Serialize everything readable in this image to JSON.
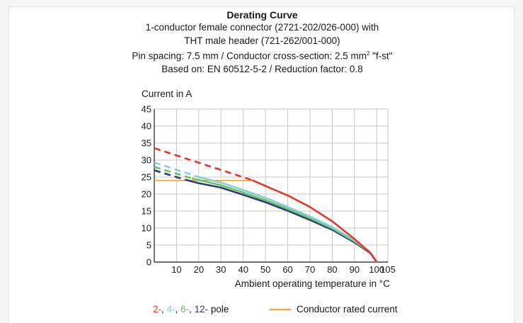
{
  "titles": {
    "main": "Derating Curve",
    "line1": "1-conductor female connector (2721-202/026-000) with",
    "line2": "THT male header (721-262/001-000)",
    "line3_prefix": "Pin spacing: 7.5 mm / Conductor cross-section: 2.5 mm",
    "line3_sup": "2",
    "line3_suffix": " \"f-st\"",
    "line4": "Based on: EN 60512-5-2 / Reduction factor: 0.8"
  },
  "chart_data": {
    "type": "line",
    "title": "Derating Curve",
    "ylabel": "Current in A",
    "xlabel": "Ambient operating temperature in °C",
    "xlim": [
      0,
      105
    ],
    "ylim": [
      0,
      45
    ],
    "xticks": [
      10,
      20,
      30,
      40,
      50,
      60,
      70,
      80,
      90,
      100,
      105
    ],
    "yticks": [
      0,
      5,
      10,
      15,
      20,
      25,
      30,
      35,
      40,
      45
    ],
    "grid": true,
    "series": [
      {
        "name": "2-",
        "color": "#e8372c",
        "dashed": [
          [
            0,
            33.5
          ],
          [
            44,
            24.1
          ]
        ],
        "values": [
          [
            44,
            24.1
          ],
          [
            50,
            22.4
          ],
          [
            60,
            19.6
          ],
          [
            70,
            16.2
          ],
          [
            80,
            12.0
          ],
          [
            90,
            6.8
          ],
          [
            97,
            2.8
          ],
          [
            100,
            0
          ]
        ]
      },
      {
        "name": "4-",
        "color": "#7fd1d6",
        "dashed": [
          [
            0,
            29.3
          ],
          [
            20,
            25.0
          ]
        ],
        "values": [
          [
            20,
            25.0
          ],
          [
            30,
            23.4
          ],
          [
            40,
            21.2
          ],
          [
            50,
            18.9
          ],
          [
            60,
            16.2
          ],
          [
            70,
            13.4
          ],
          [
            80,
            10.3
          ],
          [
            90,
            6.4
          ],
          [
            97,
            3.0
          ],
          [
            100,
            0
          ]
        ]
      },
      {
        "name": "6-",
        "color": "#6cc069",
        "dashed": [
          [
            0,
            28.0
          ],
          [
            17,
            24.6
          ]
        ],
        "values": [
          [
            17,
            24.6
          ],
          [
            30,
            22.6
          ],
          [
            40,
            20.5
          ],
          [
            50,
            18.2
          ],
          [
            60,
            15.6
          ],
          [
            70,
            12.9
          ],
          [
            80,
            9.9
          ],
          [
            90,
            6.1
          ],
          [
            97,
            2.9
          ],
          [
            100,
            0
          ]
        ]
      },
      {
        "name": "12-",
        "color": "#2f3878",
        "dashed": [
          [
            0,
            27.0
          ],
          [
            14,
            24.2
          ]
        ],
        "values": [
          [
            14,
            24.2
          ],
          [
            20,
            23.2
          ],
          [
            30,
            21.9
          ],
          [
            40,
            19.8
          ],
          [
            50,
            17.6
          ],
          [
            60,
            15.1
          ],
          [
            70,
            12.4
          ],
          [
            80,
            9.5
          ],
          [
            90,
            5.8
          ],
          [
            97,
            2.7
          ],
          [
            100,
            0
          ]
        ]
      },
      {
        "name": "Conductor rated current",
        "color": "#f7a53b",
        "values": [
          [
            0,
            24
          ],
          [
            44,
            24
          ]
        ]
      }
    ],
    "legend": {
      "placement": "bottom",
      "pole_items": [
        {
          "label": "2-",
          "color": "#e8372c"
        },
        {
          "label": "4-",
          "color": "#7fd1d6"
        },
        {
          "label": "6-",
          "color": "#6cc069"
        },
        {
          "label": "12-",
          "color": "#2f3878"
        }
      ],
      "pole_suffix": "pole",
      "rated_label": "Conductor rated current",
      "rated_color": "#f7a53b"
    }
  }
}
